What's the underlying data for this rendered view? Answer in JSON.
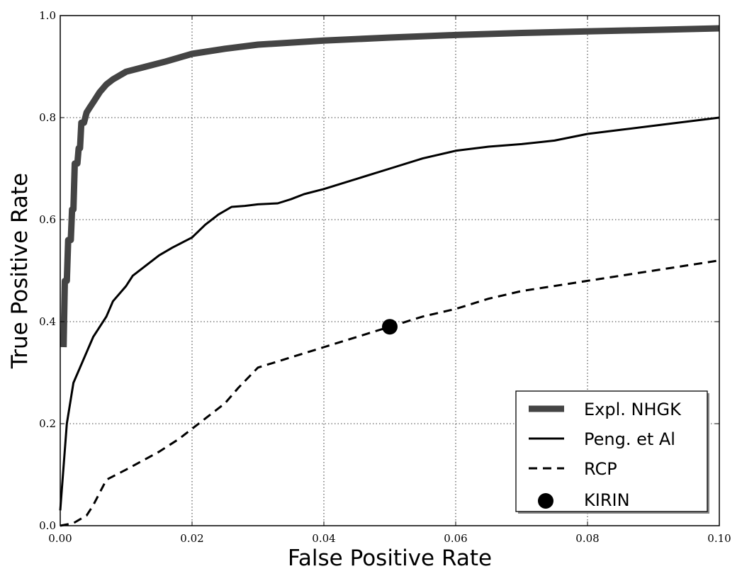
{
  "chart_data": {
    "type": "line",
    "title": "",
    "xlabel": "False Positive Rate",
    "ylabel": "True Positive Rate",
    "xlim": [
      0.0,
      0.1
    ],
    "ylim": [
      0.0,
      1.0
    ],
    "xticks": [
      "0.00",
      "0.02",
      "0.04",
      "0.06",
      "0.08",
      "0.10"
    ],
    "yticks": [
      "0.0",
      "0.2",
      "0.4",
      "0.6",
      "0.8",
      "1.0"
    ],
    "grid": true,
    "legend_position": "lower-right",
    "series": [
      {
        "name": "Expl. NHGK",
        "style": "thick-solid",
        "color": "#444444",
        "points": [
          [
            0.0005,
            0.35
          ],
          [
            0.0007,
            0.48
          ],
          [
            0.001,
            0.48
          ],
          [
            0.0012,
            0.56
          ],
          [
            0.0016,
            0.56
          ],
          [
            0.0018,
            0.62
          ],
          [
            0.002,
            0.62
          ],
          [
            0.0022,
            0.71
          ],
          [
            0.0026,
            0.71
          ],
          [
            0.0028,
            0.74
          ],
          [
            0.003,
            0.74
          ],
          [
            0.0032,
            0.79
          ],
          [
            0.0036,
            0.79
          ],
          [
            0.004,
            0.81
          ],
          [
            0.0045,
            0.82
          ],
          [
            0.005,
            0.83
          ],
          [
            0.006,
            0.85
          ],
          [
            0.007,
            0.865
          ],
          [
            0.008,
            0.875
          ],
          [
            0.01,
            0.89
          ],
          [
            0.013,
            0.9
          ],
          [
            0.016,
            0.91
          ],
          [
            0.02,
            0.925
          ],
          [
            0.025,
            0.935
          ],
          [
            0.03,
            0.943
          ],
          [
            0.04,
            0.951
          ],
          [
            0.05,
            0.957
          ],
          [
            0.06,
            0.962
          ],
          [
            0.07,
            0.966
          ],
          [
            0.08,
            0.969
          ],
          [
            0.09,
            0.972
          ],
          [
            0.1,
            0.975
          ]
        ]
      },
      {
        "name": "Peng. et Al",
        "style": "solid",
        "color": "#000000",
        "points": [
          [
            0.0,
            0.03
          ],
          [
            0.001,
            0.2
          ],
          [
            0.002,
            0.28
          ],
          [
            0.003,
            0.31
          ],
          [
            0.004,
            0.34
          ],
          [
            0.005,
            0.37
          ],
          [
            0.007,
            0.41
          ],
          [
            0.008,
            0.44
          ],
          [
            0.01,
            0.47
          ],
          [
            0.011,
            0.49
          ],
          [
            0.013,
            0.51
          ],
          [
            0.015,
            0.53
          ],
          [
            0.017,
            0.545
          ],
          [
            0.02,
            0.565
          ],
          [
            0.022,
            0.59
          ],
          [
            0.024,
            0.61
          ],
          [
            0.026,
            0.625
          ],
          [
            0.028,
            0.627
          ],
          [
            0.03,
            0.63
          ],
          [
            0.033,
            0.632
          ],
          [
            0.035,
            0.64
          ],
          [
            0.037,
            0.65
          ],
          [
            0.04,
            0.66
          ],
          [
            0.045,
            0.68
          ],
          [
            0.05,
            0.7
          ],
          [
            0.055,
            0.72
          ],
          [
            0.06,
            0.735
          ],
          [
            0.065,
            0.743
          ],
          [
            0.07,
            0.748
          ],
          [
            0.075,
            0.755
          ],
          [
            0.08,
            0.768
          ],
          [
            0.085,
            0.776
          ],
          [
            0.09,
            0.784
          ],
          [
            0.095,
            0.792
          ],
          [
            0.1,
            0.8
          ]
        ]
      },
      {
        "name": "RCP",
        "style": "dashed",
        "color": "#000000",
        "points": [
          [
            0.0,
            0.0
          ],
          [
            0.002,
            0.005
          ],
          [
            0.004,
            0.02
          ],
          [
            0.005,
            0.04
          ],
          [
            0.007,
            0.09
          ],
          [
            0.01,
            0.11
          ],
          [
            0.015,
            0.145
          ],
          [
            0.018,
            0.17
          ],
          [
            0.022,
            0.21
          ],
          [
            0.025,
            0.24
          ],
          [
            0.027,
            0.27
          ],
          [
            0.03,
            0.31
          ],
          [
            0.035,
            0.33
          ],
          [
            0.04,
            0.35
          ],
          [
            0.045,
            0.37
          ],
          [
            0.05,
            0.39
          ],
          [
            0.055,
            0.41
          ],
          [
            0.06,
            0.425
          ],
          [
            0.065,
            0.445
          ],
          [
            0.07,
            0.46
          ],
          [
            0.075,
            0.47
          ],
          [
            0.08,
            0.48
          ],
          [
            0.09,
            0.5
          ],
          [
            0.1,
            0.52
          ]
        ]
      },
      {
        "name": "KIRIN",
        "style": "marker",
        "color": "#000000",
        "points": [
          [
            0.05,
            0.39
          ]
        ]
      }
    ]
  }
}
